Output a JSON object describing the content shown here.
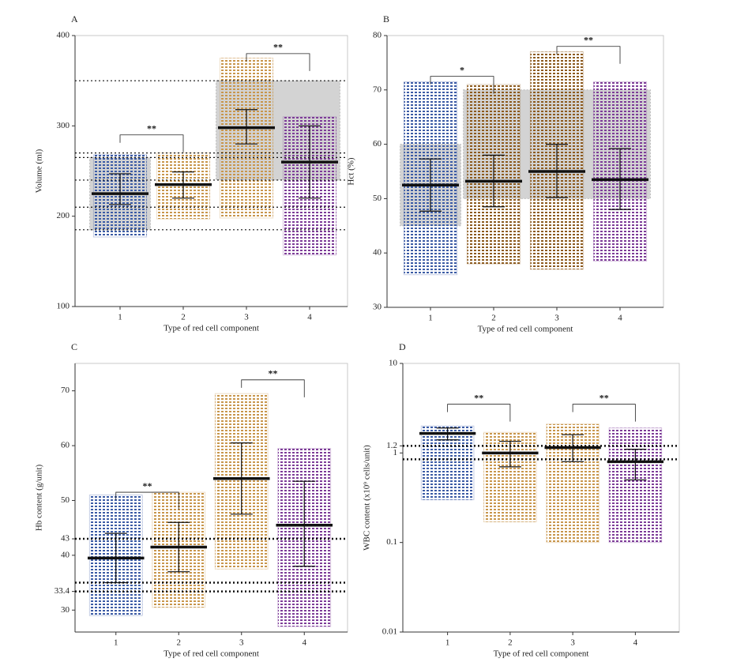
{
  "chart_data": [
    {
      "type": "strip",
      "panel": "A",
      "ylabel": "Volume (ml)",
      "xlabel": "Type of red cell component",
      "categories": [
        "1",
        "2",
        "3",
        "4"
      ],
      "colors": [
        "#3b5ba5",
        "#c8964c",
        "#c8964c",
        "#7d3c98"
      ],
      "means": [
        225,
        235,
        298,
        260
      ],
      "error": [
        [
          213,
          247
        ],
        [
          220,
          249
        ],
        [
          280,
          318
        ],
        [
          220,
          300
        ]
      ],
      "ranges": [
        [
          177,
          268
        ],
        [
          197,
          270
        ],
        [
          198,
          375
        ],
        [
          157,
          310
        ]
      ],
      "ylim": [
        100,
        400
      ],
      "yticks": [
        100,
        200,
        300,
        400
      ],
      "log": false,
      "reference_lines": [
        350,
        270,
        265,
        240,
        210,
        185
      ],
      "reference_ranges": [
        {
          "span": [
            "1",
            "1"
          ],
          "range": [
            185,
            265
          ]
        },
        {
          "span": [
            "3",
            "4"
          ],
          "range": [
            240,
            350
          ]
        }
      ],
      "significance": [
        {
          "between": [
            "1",
            "2"
          ],
          "level": 290,
          "label": "**"
        },
        {
          "between": [
            "3",
            "4"
          ],
          "level": 380,
          "label": "**"
        }
      ]
    },
    {
      "type": "strip",
      "panel": "B",
      "ylabel": "Hct (%)",
      "xlabel": "Type of red cell component",
      "categories": [
        "1",
        "2",
        "3",
        "4"
      ],
      "colors": [
        "#3b5ba5",
        "#8c5a1e",
        "#8c5a1e",
        "#7d3c98"
      ],
      "means": [
        52.5,
        53.2,
        55,
        53.5
      ],
      "error": [
        [
          47.7,
          57.3
        ],
        [
          48.5,
          58
        ],
        [
          50.2,
          60
        ],
        [
          48,
          59.2
        ]
      ],
      "ranges": [
        [
          36,
          71.5
        ],
        [
          38,
          71
        ],
        [
          37,
          77
        ],
        [
          38.5,
          71.5
        ]
      ],
      "ylim": [
        30,
        80
      ],
      "yticks": [
        30,
        40,
        50,
        60,
        70,
        80
      ],
      "log": false,
      "reference_lines": [],
      "reference_ranges": [
        {
          "span": [
            "1",
            "1"
          ],
          "range": [
            45,
            60
          ]
        },
        {
          "span": [
            "2",
            "4"
          ],
          "range": [
            50,
            70
          ]
        }
      ],
      "significance": [
        {
          "between": [
            "1",
            "2"
          ],
          "level": 72.5,
          "label": "*"
        },
        {
          "between": [
            "3",
            "4"
          ],
          "level": 78,
          "label": "**"
        }
      ]
    },
    {
      "type": "strip",
      "panel": "C",
      "ylabel": "Hb content (g/unit)",
      "xlabel": "Type of red cell component",
      "categories": [
        "1",
        "2",
        "3",
        "4"
      ],
      "colors": [
        "#3b5ba5",
        "#c8964c",
        "#c8964c",
        "#7d3c98"
      ],
      "means": [
        39.5,
        41.5,
        54,
        45.5
      ],
      "error": [
        [
          35,
          44
        ],
        [
          37,
          46
        ],
        [
          47.5,
          60.5
        ],
        [
          38,
          53.5
        ]
      ],
      "ranges": [
        [
          29,
          51
        ],
        [
          30.5,
          51.5
        ],
        [
          37.5,
          69.5
        ],
        [
          27,
          59.5
        ]
      ],
      "ylim": [
        26,
        75
      ],
      "yticks": [
        30,
        33.4,
        40,
        43,
        50,
        60,
        70
      ],
      "log": false,
      "reference_lines": [
        43,
        35,
        33.4
      ],
      "reference_ranges": [],
      "significance": [
        {
          "between": [
            "1",
            "2"
          ],
          "level": 51.5,
          "label": "**"
        },
        {
          "between": [
            "3",
            "4"
          ],
          "level": 72,
          "label": "**"
        }
      ]
    },
    {
      "type": "strip",
      "panel": "D",
      "ylabel": "WBC content (x10⁹ cells/unit)",
      "xlabel": "Type of red cell component",
      "categories": [
        "1",
        "2",
        "3",
        "4"
      ],
      "colors": [
        "#3b5ba5",
        "#c8964c",
        "#c8964c",
        "#7d3c98"
      ],
      "means": [
        1.65,
        1.0,
        1.15,
        0.8
      ],
      "error": [
        [
          1.4,
          1.9
        ],
        [
          0.7,
          1.35
        ],
        [
          0.8,
          1.6
        ],
        [
          0.5,
          1.1
        ]
      ],
      "ranges": [
        [
          0.3,
          2.0
        ],
        [
          0.17,
          1.7
        ],
        [
          0.1,
          2.1
        ],
        [
          0.1,
          1.9
        ]
      ],
      "ylim": [
        0.01,
        10
      ],
      "yticks": [
        0.01,
        0.1,
        1,
        1.2,
        10
      ],
      "log": true,
      "reference_lines": [
        1.2,
        0.85
      ],
      "reference_ranges": [],
      "significance": [
        {
          "between": [
            "1",
            "2"
          ],
          "level": 3.5,
          "label": "**"
        },
        {
          "between": [
            "3",
            "4"
          ],
          "level": 3.5,
          "label": "**"
        }
      ]
    }
  ]
}
